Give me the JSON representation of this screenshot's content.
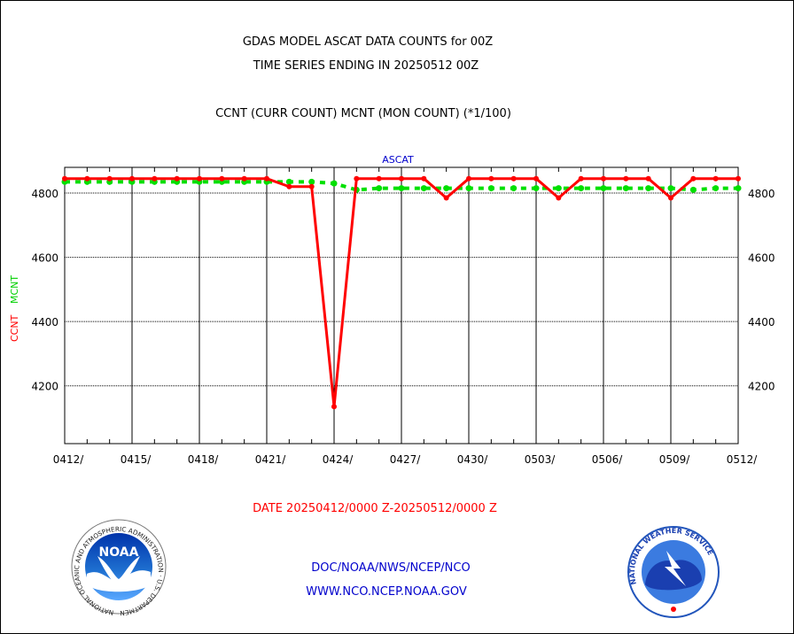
{
  "header": {
    "title_line1": "GDAS MODEL ASCAT DATA COUNTS for 00Z",
    "title_line2": "TIME SERIES ENDING IN 20250512 00Z",
    "subtitle": "CCNT (CURR COUNT) MCNT (MON COUNT) (*1/100)"
  },
  "footer": {
    "date_range": "DATE 20250412/0000 Z-20250512/0000 Z",
    "org_line": "DOC/NOAA/NWS/NCEP/NCO",
    "url_line": "WWW.NCO.NCEP.NOAA.GOV"
  },
  "logos": {
    "noaa_text": "NOAA",
    "noaa_ring_text": "NATIONAL OCEANIC AND ATMOSPHERIC ADMINISTRATION · U.S. DEPARTMENT OF COMMERCE",
    "nws_ring_text": "NATIONAL WEATHER SERVICE"
  },
  "colors": {
    "ccnt": "#ff0000",
    "mcnt": "#00e000",
    "title": "#000000",
    "panel_label": "#0000cc",
    "footer_link": "#0000cc",
    "date_range": "#ff0000"
  },
  "chart_data": {
    "type": "line",
    "panel_title": "ASCAT",
    "ylabel_ccnt": "CCNT",
    "ylabel_mcnt": "MCNT",
    "ylim": [
      4020,
      4880
    ],
    "yticks": [
      4200,
      4400,
      4600,
      4800
    ],
    "grid": true,
    "x_days": 30,
    "x_tick_labels": [
      "0412/",
      "0415/",
      "0418/",
      "0421/",
      "0424/",
      "0427/",
      "0430/",
      "0503/",
      "0506/",
      "0509/",
      "0512/"
    ],
    "x_tick_day_offsets": [
      0,
      3,
      6,
      9,
      12,
      15,
      18,
      21,
      24,
      27,
      30
    ],
    "series": [
      {
        "name": "CCNT",
        "color": "#ff0000",
        "style": "solid",
        "values": [
          4845,
          4845,
          4845,
          4845,
          4845,
          4845,
          4845,
          4845,
          4845,
          4845,
          4820,
          4820,
          4135,
          4845,
          4845,
          4845,
          4845,
          4785,
          4845,
          4845,
          4845,
          4845,
          4785,
          4845,
          4845,
          4845,
          4845,
          4785,
          4845,
          4845,
          4845
        ]
      },
      {
        "name": "MCNT",
        "color": "#00e000",
        "style": "dashed",
        "values": [
          4835,
          4835,
          4835,
          4835,
          4835,
          4835,
          4835,
          4835,
          4835,
          4835,
          4835,
          4835,
          4830,
          4810,
          4815,
          4815,
          4815,
          4815,
          4815,
          4815,
          4815,
          4815,
          4815,
          4815,
          4815,
          4815,
          4815,
          4815,
          4810,
          4815,
          4815
        ]
      }
    ]
  }
}
